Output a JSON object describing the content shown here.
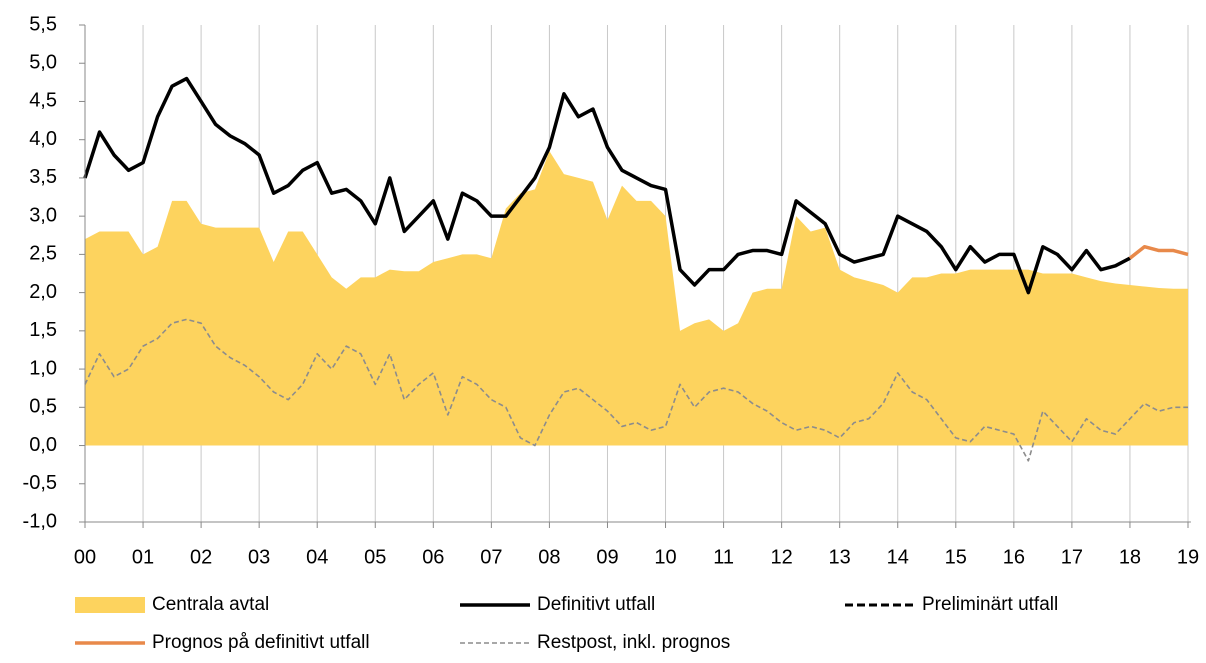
{
  "chart_data": {
    "type": "line",
    "x": [
      0,
      0.25,
      0.5,
      0.75,
      1,
      1.25,
      1.5,
      1.75,
      2,
      2.25,
      2.5,
      2.75,
      3,
      3.25,
      3.5,
      3.75,
      4,
      4.25,
      4.5,
      4.75,
      5,
      5.25,
      5.5,
      5.75,
      6,
      6.25,
      6.5,
      6.75,
      7,
      7.25,
      7.5,
      7.75,
      8,
      8.25,
      8.5,
      8.75,
      9,
      9.25,
      9.5,
      9.75,
      10,
      10.25,
      10.5,
      10.75,
      11,
      11.25,
      11.5,
      11.75,
      12,
      12.25,
      12.5,
      12.75,
      13,
      13.25,
      13.5,
      13.75,
      14,
      14.25,
      14.5,
      14.75,
      15,
      15.25,
      15.5,
      15.75,
      16,
      16.25,
      16.5,
      16.75,
      17,
      17.25,
      17.5,
      17.75,
      18,
      18.25,
      18.5,
      18.75,
      19
    ],
    "series": [
      {
        "name": "Centrala avtal",
        "color": "#fdd35e",
        "style": "area",
        "values": [
          2.7,
          2.8,
          2.8,
          2.8,
          2.5,
          2.6,
          3.2,
          3.2,
          2.9,
          2.85,
          2.85,
          2.85,
          2.85,
          2.4,
          2.8,
          2.8,
          2.5,
          2.2,
          2.05,
          2.2,
          2.2,
          2.3,
          2.28,
          2.28,
          2.4,
          2.45,
          2.5,
          2.5,
          2.45,
          3.1,
          3.3,
          3.35,
          3.85,
          3.55,
          3.5,
          3.45,
          2.95,
          3.4,
          3.2,
          3.2,
          3.0,
          1.5,
          1.6,
          1.65,
          1.5,
          1.6,
          2.0,
          2.05,
          2.05,
          3.0,
          2.8,
          2.85,
          2.3,
          2.2,
          2.15,
          2.1,
          2.0,
          2.2,
          2.2,
          2.25,
          2.25,
          2.3,
          2.3,
          2.3,
          2.3,
          2.3,
          2.25,
          2.25,
          2.25,
          2.2,
          2.15,
          2.12,
          2.1,
          2.08,
          2.06,
          2.05,
          2.05
        ]
      },
      {
        "name": "Restpost, inkl. prognos",
        "color": "#8c8c8c",
        "style": "dashed",
        "values": [
          0.8,
          1.2,
          0.9,
          1.0,
          1.3,
          1.4,
          1.6,
          1.65,
          1.6,
          1.3,
          1.15,
          1.05,
          0.9,
          0.7,
          0.6,
          0.8,
          1.2,
          1.0,
          1.3,
          1.2,
          0.8,
          1.2,
          0.6,
          0.8,
          0.95,
          0.4,
          0.9,
          0.8,
          0.6,
          0.5,
          0.1,
          0.0,
          0.4,
          0.7,
          0.75,
          0.6,
          0.45,
          0.25,
          0.3,
          0.2,
          0.25,
          0.8,
          0.5,
          0.7,
          0.75,
          0.7,
          0.55,
          0.45,
          0.3,
          0.2,
          0.25,
          0.2,
          0.1,
          0.3,
          0.35,
          0.55,
          0.95,
          0.7,
          0.6,
          0.35,
          0.1,
          0.05,
          0.25,
          0.2,
          0.15,
          -0.2,
          0.45,
          0.25,
          0.05,
          0.35,
          0.2,
          0.15,
          0.35,
          0.55,
          0.45,
          0.5,
          0.5
        ]
      },
      {
        "name": "Definitivt utfall",
        "color": "#000000",
        "style": "solid",
        "values": [
          3.5,
          4.1,
          3.8,
          3.6,
          3.7,
          4.3,
          4.7,
          4.8,
          4.5,
          4.2,
          4.05,
          3.95,
          3.8,
          3.3,
          3.4,
          3.6,
          3.7,
          3.3,
          3.35,
          3.2,
          2.9,
          3.5,
          2.8,
          3.0,
          3.2,
          2.7,
          3.3,
          3.2,
          3.0,
          3.0,
          3.25,
          3.5,
          3.9,
          4.6,
          4.3,
          4.4,
          3.9,
          3.6,
          3.5,
          3.4,
          3.35,
          2.3,
          2.1,
          2.3,
          2.3,
          2.5,
          2.55,
          2.55,
          2.5,
          3.2,
          3.05,
          2.9,
          2.5,
          2.4,
          2.45,
          2.5,
          3.0,
          2.9,
          2.8,
          2.6,
          2.3,
          2.6,
          2.4,
          2.5,
          2.5,
          2.0,
          2.6,
          2.5,
          2.3,
          2.55,
          2.3,
          2.35,
          2.45,
          null,
          null,
          null,
          null
        ]
      },
      {
        "name": "Preliminärt utfall",
        "color": "#000000",
        "style": "dashed-bold",
        "values": [
          null,
          null,
          null,
          null,
          null,
          null,
          null,
          null,
          null,
          null,
          null,
          null,
          null,
          null,
          null,
          null,
          null,
          null,
          null,
          null,
          null,
          null,
          null,
          null,
          null,
          null,
          null,
          null,
          null,
          null,
          null,
          null,
          null,
          null,
          null,
          null,
          null,
          null,
          null,
          null,
          null,
          null,
          null,
          null,
          null,
          null,
          null,
          null,
          null,
          null,
          null,
          null,
          null,
          null,
          null,
          null,
          null,
          null,
          null,
          null,
          null,
          null,
          null,
          null,
          null,
          null,
          null,
          null,
          null,
          null,
          null,
          2.35,
          2.45,
          null,
          null,
          null,
          null
        ]
      },
      {
        "name": "Prognos på definitivt utfall",
        "color": "#e8894a",
        "style": "solid",
        "values": [
          null,
          null,
          null,
          null,
          null,
          null,
          null,
          null,
          null,
          null,
          null,
          null,
          null,
          null,
          null,
          null,
          null,
          null,
          null,
          null,
          null,
          null,
          null,
          null,
          null,
          null,
          null,
          null,
          null,
          null,
          null,
          null,
          null,
          null,
          null,
          null,
          null,
          null,
          null,
          null,
          null,
          null,
          null,
          null,
          null,
          null,
          null,
          null,
          null,
          null,
          null,
          null,
          null,
          null,
          null,
          null,
          null,
          null,
          null,
          null,
          null,
          null,
          null,
          null,
          null,
          null,
          null,
          null,
          null,
          null,
          null,
          null,
          2.45,
          2.6,
          2.55,
          2.55,
          2.5
        ]
      }
    ],
    "xlim": [
      0,
      19.05
    ],
    "xticks": [
      {
        "value": 0,
        "label": "00"
      },
      {
        "value": 1,
        "label": "01"
      },
      {
        "value": 2,
        "label": "02"
      },
      {
        "value": 3,
        "label": "03"
      },
      {
        "value": 4,
        "label": "04"
      },
      {
        "value": 5,
        "label": "05"
      },
      {
        "value": 6,
        "label": "06"
      },
      {
        "value": 7,
        "label": "07"
      },
      {
        "value": 8,
        "label": "08"
      },
      {
        "value": 9,
        "label": "09"
      },
      {
        "value": 10,
        "label": "10"
      },
      {
        "value": 11,
        "label": "11"
      },
      {
        "value": 12,
        "label": "12"
      },
      {
        "value": 13,
        "label": "13"
      },
      {
        "value": 14,
        "label": "14"
      },
      {
        "value": 15,
        "label": "15"
      },
      {
        "value": 16,
        "label": "16"
      },
      {
        "value": 17,
        "label": "17"
      },
      {
        "value": 18,
        "label": "18"
      },
      {
        "value": 19,
        "label": "19"
      }
    ],
    "ylim": [
      -1.0,
      5.5
    ],
    "yticks": [
      {
        "value": -1.0,
        "label": "-1,0"
      },
      {
        "value": -0.5,
        "label": "-0,5"
      },
      {
        "value": 0,
        "label": "0,0"
      },
      {
        "value": 0.5,
        "label": "0,5"
      },
      {
        "value": 1.0,
        "label": "1,0"
      },
      {
        "value": 1.5,
        "label": "1,5"
      },
      {
        "value": 2.0,
        "label": "2,0"
      },
      {
        "value": 2.5,
        "label": "2,5"
      },
      {
        "value": 3.0,
        "label": "3,0"
      },
      {
        "value": 3.5,
        "label": "3,5"
      },
      {
        "value": 4.0,
        "label": "4,0"
      },
      {
        "value": 4.5,
        "label": "4,5"
      },
      {
        "value": 5.0,
        "label": "5,0"
      },
      {
        "value": 5.5,
        "label": "5,5"
      }
    ],
    "grid": "x",
    "legend": "bottom"
  }
}
